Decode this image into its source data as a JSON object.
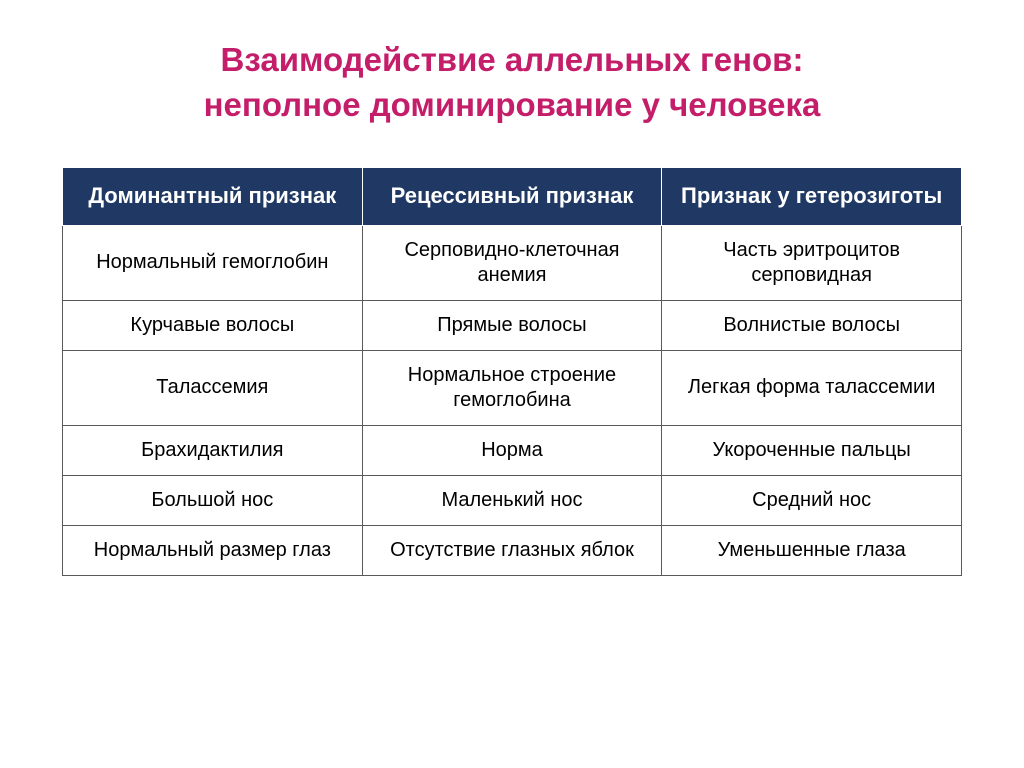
{
  "title": {
    "line1": "Взаимодействие аллельных генов:",
    "line2": "неполное доминирование у человека",
    "color": "#c41e6a",
    "fontsize": 33
  },
  "table": {
    "header_bg": "#1f3864",
    "header_color": "#ffffff",
    "header_fontsize": 22,
    "cell_fontsize": 20,
    "border_color": "#595959",
    "columns": [
      "Доминантный признак",
      "Рецессивный признак",
      "Признак у гетерозиготы"
    ],
    "rows": [
      [
        "Нормальный гемоглобин",
        "Серповидно-клеточная анемия",
        "Часть эритроцитов серповидная"
      ],
      [
        "Курчавые волосы",
        "Прямые волосы",
        "Волнистые волосы"
      ],
      [
        "Талассемия",
        "Нормальное строение гемоглобина",
        "Легкая форма талассемии"
      ],
      [
        "Брахидактилия",
        "Норма",
        "Укороченные пальцы"
      ],
      [
        "Большой нос",
        "Маленький нос",
        "Средний нос"
      ],
      [
        "Нормальный размер глаз",
        "Отсутствие глазных яблок",
        "Уменьшенные глаза"
      ]
    ]
  }
}
